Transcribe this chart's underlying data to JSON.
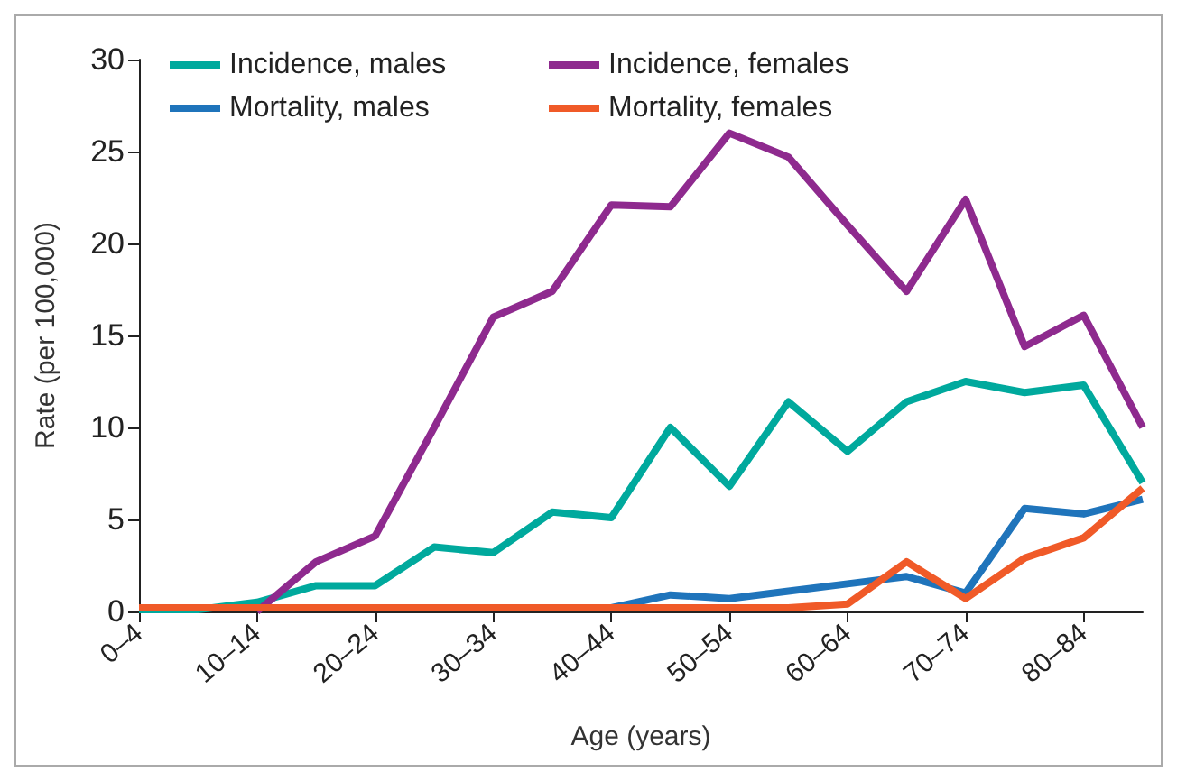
{
  "chart_data": {
    "type": "line",
    "xlabel": "Age (years)",
    "ylabel": "Rate (per 100,000)",
    "categories": [
      "0–4",
      null,
      "10–14",
      null,
      "20–24",
      null,
      "30–34",
      null,
      "40–44",
      null,
      "50–54",
      null,
      "60–64",
      null,
      "70–74",
      null,
      "80–84",
      null
    ],
    "ylim": [
      0,
      30
    ],
    "yticks": [
      0,
      5,
      10,
      15,
      20,
      25,
      30
    ],
    "grid": false,
    "legend": "top left",
    "marker": "none",
    "line_style": "solid",
    "series": [
      {
        "name": "Incidence, males",
        "color": "#00a99d",
        "values": [
          0.1,
          0.1,
          0.5,
          1.4,
          1.4,
          3.5,
          3.2,
          5.4,
          5.1,
          10,
          6.8,
          11.4,
          8.7,
          11.4,
          12.5,
          11.9,
          12.3,
          7.0
        ]
      },
      {
        "name": "Incidence, females",
        "color": "#8e2a8e",
        "values": [
          null,
          null,
          0,
          2.7,
          4.1,
          10,
          16,
          17.4,
          22.1,
          22.0,
          26,
          24.7,
          21,
          17.4,
          22.4,
          14.4,
          16.1,
          10
        ]
      },
      {
        "name": "Mortality, males",
        "color": "#1f74bb",
        "values": [
          null,
          null,
          null,
          null,
          null,
          null,
          null,
          null,
          0.2,
          0.9,
          0.7,
          1.1,
          1.5,
          1.9,
          1.0,
          5.6,
          5.3,
          6.1
        ]
      },
      {
        "name": "Mortality, females",
        "color": "#f05a28",
        "values": [
          0.2,
          0.2,
          0.2,
          0.2,
          0.2,
          0.2,
          0.2,
          0.2,
          0.2,
          0.2,
          0.2,
          0.2,
          0.4,
          2.7,
          0.7,
          2.9,
          4.0,
          6.7
        ]
      }
    ]
  }
}
